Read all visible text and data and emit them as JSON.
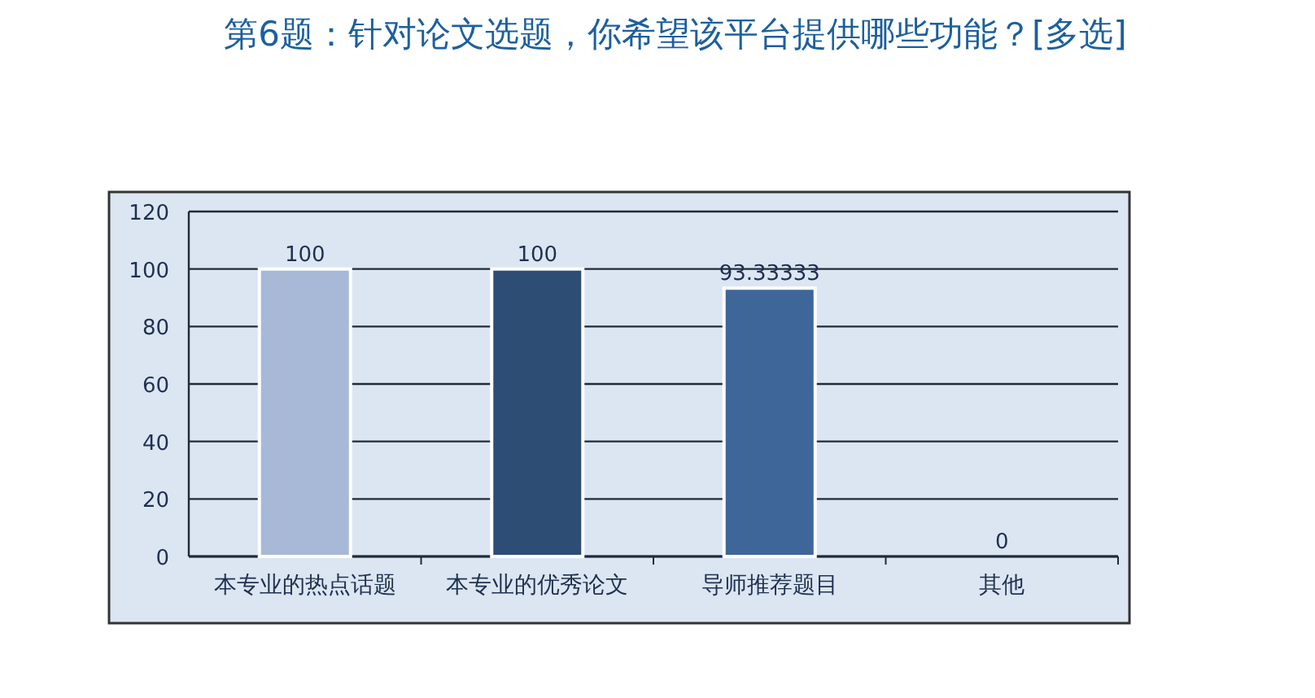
{
  "chart_data": {
    "type": "bar",
    "title": "第6题：针对论文选题，你希望该平台提供哪些功能？[多选]",
    "categories": [
      "本专业的热点话题",
      "本专业的优秀论文",
      "导师推荐题目",
      "其他"
    ],
    "values": [
      100,
      100,
      93.33333,
      0
    ],
    "colors": [
      "#a7b9d6",
      "#2e4d75",
      "#3e6699",
      "#7f9ccc"
    ],
    "ylim": [
      0,
      120
    ],
    "yticks": [
      0,
      20,
      40,
      60,
      80,
      100,
      120
    ],
    "grid": "y",
    "data_labels": true
  }
}
